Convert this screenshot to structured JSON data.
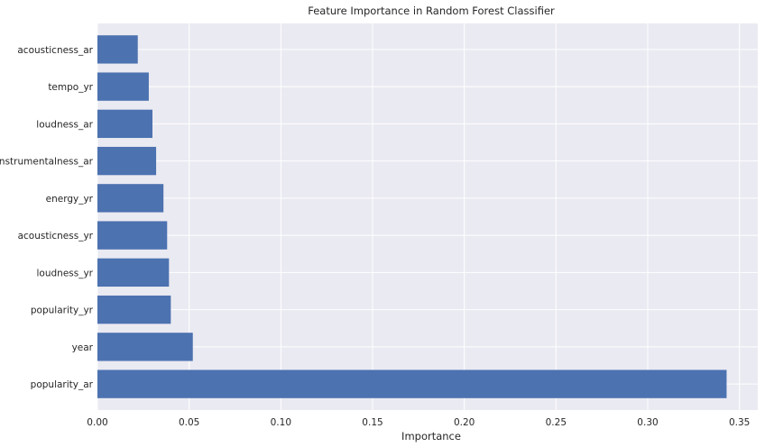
{
  "chart_data": {
    "type": "bar",
    "orientation": "horizontal",
    "title": "Feature Importance in Random Forest Classifier",
    "xlabel": "Importance",
    "ylabel": "",
    "categories": [
      "popularity_ar",
      "year",
      "popularity_yr",
      "loudness_yr",
      "acousticness_yr",
      "energy_yr",
      "instrumentalness_ar",
      "loudness_ar",
      "tempo_yr",
      "acousticness_ar"
    ],
    "values": [
      0.343,
      0.052,
      0.04,
      0.039,
      0.038,
      0.036,
      0.032,
      0.03,
      0.028,
      0.022
    ],
    "xlim": [
      0,
      0.36
    ],
    "xticks": [
      0.0,
      0.05,
      0.1,
      0.15,
      0.2,
      0.25,
      0.3,
      0.35
    ],
    "xtick_labels": [
      "0.00",
      "0.05",
      "0.10",
      "0.15",
      "0.20",
      "0.25",
      "0.30",
      "0.35"
    ],
    "grid": true,
    "colors": {
      "bar": "#4c72b0",
      "background": "#eaeaf2",
      "grid": "#ffffff"
    }
  }
}
